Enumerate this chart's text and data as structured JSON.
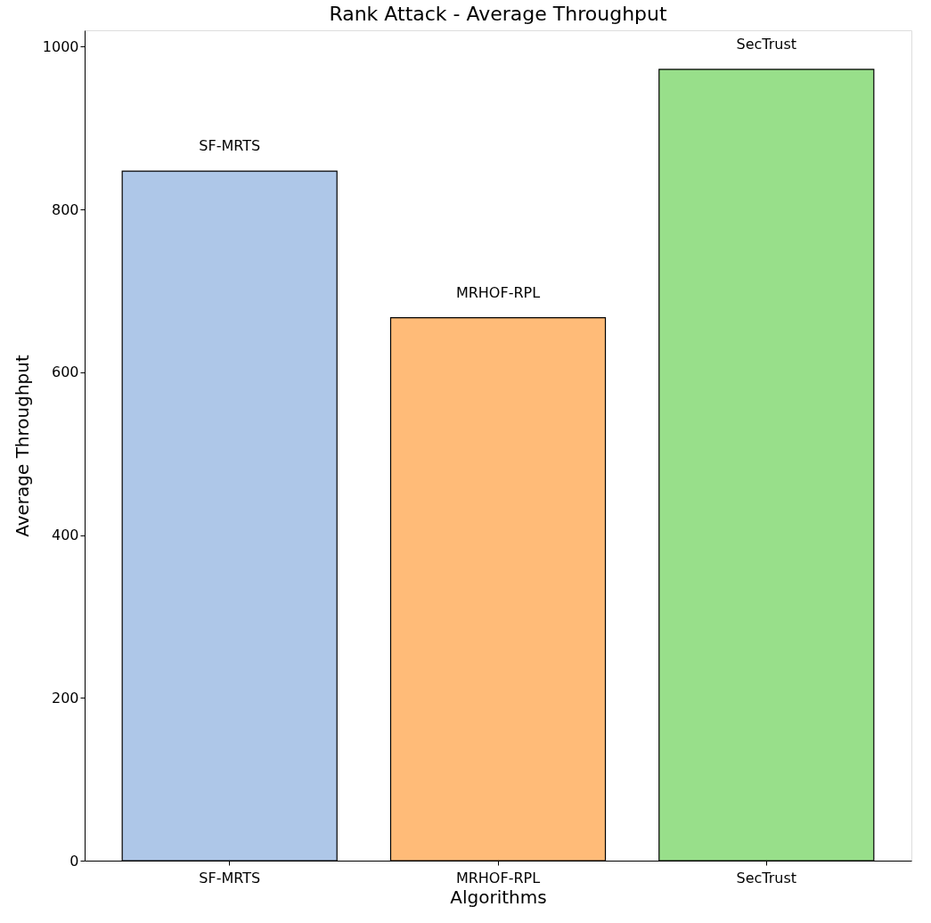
{
  "chart_data": {
    "type": "bar",
    "title": "Rank Attack - Average Throughput",
    "xlabel": "Algorithms",
    "ylabel": "Average Throughput",
    "categories": [
      "SF-MRTS",
      "MRHOF-RPL",
      "SecTrust"
    ],
    "values": [
      847,
      667,
      972
    ],
    "colors": [
      "#aec7e8",
      "#ffbb78",
      "#98df8a"
    ],
    "ylim": [
      0,
      1020
    ],
    "yticks": [
      0,
      200,
      400,
      600,
      800,
      1000
    ],
    "grid": false,
    "annotations": [
      {
        "text": "SF-MRTS",
        "x": "SF-MRTS",
        "y": 847
      },
      {
        "text": "MRHOF-RPL",
        "x": "MRHOF-RPL",
        "y": 667
      },
      {
        "text": "SecTrust",
        "x": "SecTrust",
        "y": 972
      }
    ]
  }
}
